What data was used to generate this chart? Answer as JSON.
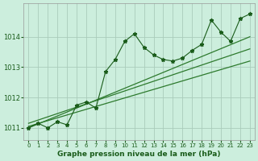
{
  "title": "Graphe pression niveau de la mer (hPa)",
  "background_color": "#cceedd",
  "grid_color": "#aaccbb",
  "line_color": "#1a5c1a",
  "trend_color": "#2d7a2d",
  "xlim": [
    -0.5,
    23.5
  ],
  "ylim": [
    1010.6,
    1015.1
  ],
  "yticks": [
    1011,
    1012,
    1013,
    1014
  ],
  "xticks": [
    0,
    1,
    2,
    3,
    4,
    5,
    6,
    7,
    8,
    9,
    10,
    11,
    12,
    13,
    14,
    15,
    16,
    17,
    18,
    19,
    20,
    21,
    22,
    23
  ],
  "x": [
    0,
    1,
    2,
    3,
    4,
    5,
    6,
    7,
    8,
    9,
    10,
    11,
    12,
    13,
    14,
    15,
    16,
    17,
    18,
    19,
    20,
    21,
    22,
    23
  ],
  "y": [
    1011.0,
    1011.15,
    1011.0,
    1011.2,
    1011.1,
    1011.75,
    1011.85,
    1011.65,
    1012.85,
    1013.25,
    1013.85,
    1014.1,
    1013.65,
    1013.4,
    1013.25,
    1013.2,
    1013.3,
    1013.55,
    1013.75,
    1014.55,
    1014.15,
    1013.85,
    1014.6,
    1014.75
  ],
  "trend1_x": [
    0,
    23
  ],
  "trend1_y": [
    1011.0,
    1014.0
  ],
  "trend2_x": [
    0,
    23
  ],
  "trend2_y": [
    1011.15,
    1013.6
  ],
  "trend3_x": [
    0,
    23
  ],
  "trend3_y": [
    1011.05,
    1013.2
  ]
}
